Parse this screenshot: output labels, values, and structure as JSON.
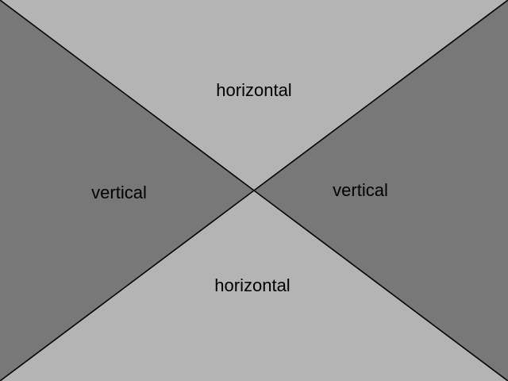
{
  "regions": {
    "top": {
      "label": "horizontal",
      "color": "#b4b4b4"
    },
    "bottom": {
      "label": "horizontal",
      "color": "#b4b4b4"
    },
    "left": {
      "label": "vertical",
      "color": "#787878"
    },
    "right": {
      "label": "vertical",
      "color": "#787878"
    }
  },
  "line_color": "#000000"
}
